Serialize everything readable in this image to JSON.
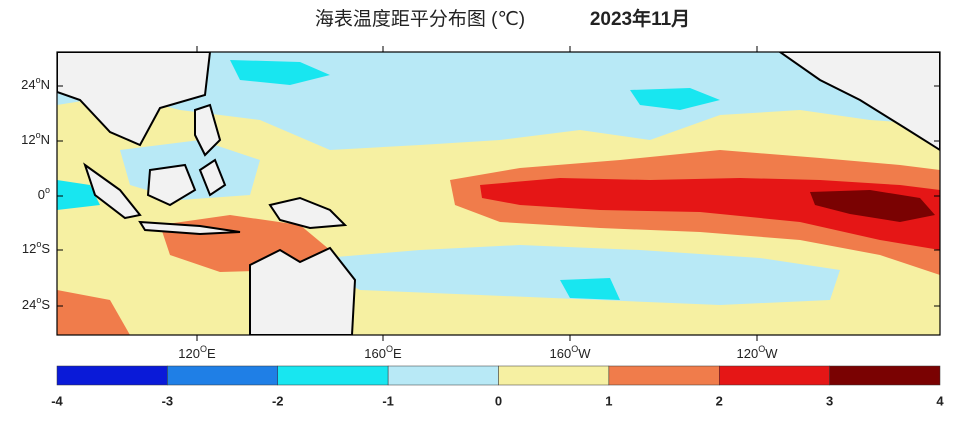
{
  "title": "海表温度距平分布图 (℃)",
  "date": "2023年11月",
  "lat_labels": [
    {
      "deg": "24",
      "sup": "o",
      "dir": "N"
    },
    {
      "deg": "12",
      "sup": "o",
      "dir": "N"
    },
    {
      "deg": "0",
      "sup": "o",
      "dir": ""
    },
    {
      "deg": "12",
      "sup": "o",
      "dir": "S"
    },
    {
      "deg": "24",
      "sup": "o",
      "dir": "S"
    }
  ],
  "lon_labels": [
    {
      "deg": "120",
      "sup": "O",
      "dir": "E"
    },
    {
      "deg": "160",
      "sup": "O",
      "dir": "E"
    },
    {
      "deg": "160",
      "sup": "O",
      "dir": "W"
    },
    {
      "deg": "120",
      "sup": "O",
      "dir": "W"
    }
  ],
  "colorbar": {
    "ticks": [
      -4,
      -3,
      -2,
      -1,
      0,
      1,
      2,
      3,
      4
    ],
    "colors": [
      "#0a1ad8",
      "#1f7fe6",
      "#18e6f0",
      "#b8e9f6",
      "#f6f0a2",
      "#f07c4b",
      "#e51616",
      "#7a0202"
    ]
  }
}
